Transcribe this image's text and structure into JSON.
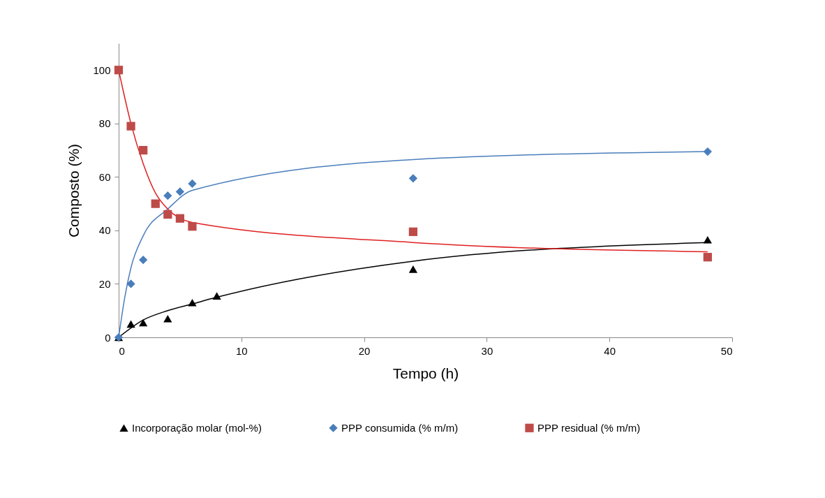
{
  "chart_data": {
    "type": "scatter",
    "xlabel": "Tempo (h)",
    "ylabel": "Composto (%)",
    "xlim": [
      0,
      50
    ],
    "xticks": [
      0,
      10,
      20,
      30,
      40,
      50
    ],
    "ylim": [
      0,
      110
    ],
    "yticks": [
      0,
      20,
      40,
      60,
      80,
      100
    ],
    "grid": false,
    "legend": "bottom",
    "series": [
      {
        "name": "Incorporação molar  (mol-%)",
        "color": "#000000",
        "marker": "triangle",
        "x": [
          0,
          1,
          2,
          4,
          6,
          8,
          24,
          48
        ],
        "values": [
          0,
          5,
          5.5,
          7,
          13,
          15.5,
          25.5,
          36.5
        ]
      },
      {
        "name": "PPP consumida  (% m/m)",
        "color": "#4a7ebb",
        "marker": "diamond",
        "x": [
          0,
          1,
          2,
          4,
          5,
          6,
          24,
          48
        ],
        "values": [
          0,
          20,
          29,
          53,
          54.5,
          57.5,
          59.5,
          69.5
        ]
      },
      {
        "name": "PPP residual (% m/m)",
        "color": "#be4b48",
        "marker": "square",
        "x": [
          0,
          1,
          2,
          3,
          4,
          5,
          6,
          24,
          48
        ],
        "values": [
          100,
          79,
          70,
          50,
          46,
          44.5,
          41.5,
          39.5,
          30
        ]
      },
      {
        "type": "line",
        "color": "#000000",
        "marker": "none",
        "line_style": "solid",
        "x": [
          0,
          2,
          4,
          6,
          8,
          24,
          48
        ],
        "values": [
          0,
          6.5,
          10,
          12.5,
          15,
          28.5,
          35.5
        ]
      },
      {
        "type": "line",
        "color": "#4a7ebb",
        "marker": "none",
        "line_style": "solid",
        "x": [
          0,
          0.5,
          1,
          2,
          4,
          6,
          24,
          48
        ],
        "values": [
          0,
          15,
          26,
          38,
          48,
          55,
          66.5,
          69.5
        ]
      },
      {
        "type": "line",
        "color": "#e02020",
        "marker": "none",
        "line_style": "solid",
        "x": [
          0,
          1,
          2,
          3,
          4,
          6,
          24,
          48
        ],
        "values": [
          100,
          80,
          65,
          54,
          48,
          43,
          35.5,
          32
        ]
      }
    ]
  }
}
